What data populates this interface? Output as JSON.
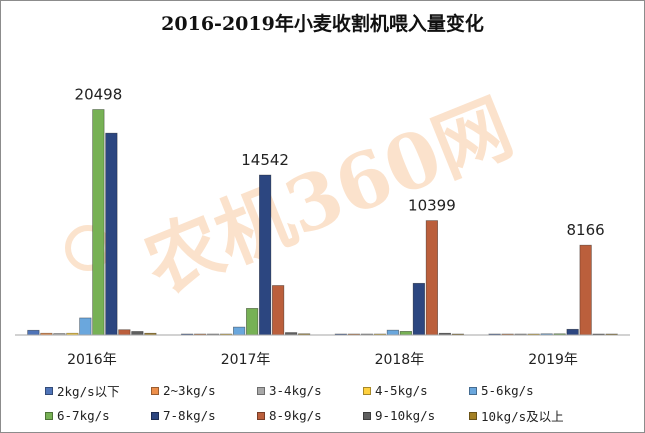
{
  "chart_data": {
    "type": "bar",
    "title": "2016-2019年小麦收割机喂入量变化",
    "categories": [
      "2016年",
      "2017年",
      "2018年",
      "2019年"
    ],
    "ylim": [
      0,
      22000
    ],
    "grid": false,
    "legend_position": "bottom",
    "watermark": "农机360网",
    "series": [
      {
        "name": "2kg/s以下",
        "color": "#4f74b8",
        "values": [
          430,
          50,
          30,
          0
        ]
      },
      {
        "name": "2~3kg/s",
        "color": "#ed8f4b",
        "values": [
          160,
          40,
          0,
          50
        ]
      },
      {
        "name": "3-4kg/s",
        "color": "#a8a8a8",
        "values": [
          130,
          30,
          0,
          0
        ]
      },
      {
        "name": "4-5kg/s",
        "color": "#ffd13f",
        "values": [
          160,
          50,
          0,
          50
        ]
      },
      {
        "name": "5-6kg/s",
        "color": "#6aa7dd",
        "values": [
          1550,
          720,
          440,
          110
        ]
      },
      {
        "name": "6-7kg/s",
        "color": "#77b155",
        "values": [
          20498,
          2420,
          330,
          110
        ]
      },
      {
        "name": "7-8kg/s",
        "color": "#2c4680",
        "values": [
          18350,
          14542,
          4700,
          520
        ]
      },
      {
        "name": "8-9kg/s",
        "color": "#bb5f3c",
        "values": [
          480,
          4500,
          10399,
          8166
        ]
      },
      {
        "name": "9-10kg/s",
        "color": "#5f5f5f",
        "values": [
          320,
          220,
          160,
          90
        ]
      },
      {
        "name": "10kg/s及以上",
        "color": "#a38024",
        "values": [
          160,
          110,
          50,
          50
        ]
      }
    ],
    "annotations": [
      {
        "category": "2016年",
        "text": "20498"
      },
      {
        "category": "2017年",
        "text": "14542"
      },
      {
        "category": "2018年",
        "text": "10399"
      },
      {
        "category": "2019年",
        "text": "8166"
      }
    ]
  }
}
